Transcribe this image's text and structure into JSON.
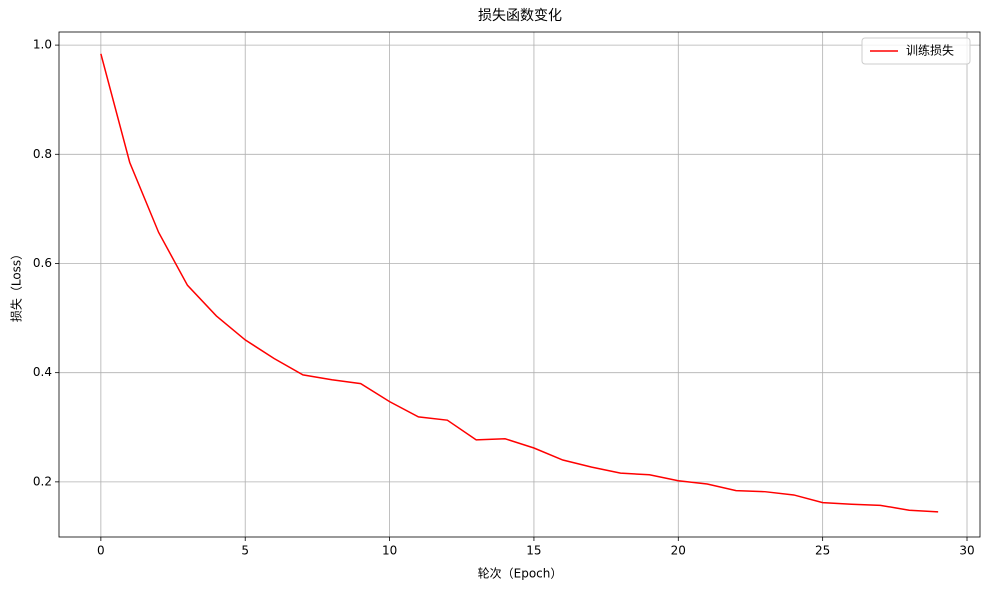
{
  "chart_data": {
    "type": "line",
    "title": "损失函数变化",
    "x_label": "轮次（Epoch）",
    "y_label": "损失（Loss）",
    "x": [
      0,
      1,
      2,
      3,
      4,
      5,
      6,
      7,
      8,
      9,
      10,
      11,
      12,
      13,
      14,
      15,
      16,
      17,
      18,
      19,
      20,
      21,
      22,
      23,
      24,
      25,
      26,
      27,
      28,
      29
    ],
    "series": [
      {
        "name": "训练损失",
        "color": "#ff0000",
        "values": [
          0.984,
          0.785,
          0.657,
          0.56,
          0.504,
          0.46,
          0.426,
          0.396,
          0.387,
          0.38,
          0.347,
          0.319,
          0.313,
          0.277,
          0.279,
          0.262,
          0.24,
          0.227,
          0.216,
          0.213,
          0.202,
          0.196,
          0.184,
          0.182,
          0.176,
          0.162,
          0.159,
          0.157,
          0.148,
          0.145
        ]
      }
    ],
    "xlim": [
      -1.45,
      30.45
    ],
    "xticks": [
      0,
      5,
      10,
      15,
      20,
      25,
      30
    ],
    "ylim": [
      0.099,
      1.024
    ],
    "yticks": [
      {
        "value": 0.2,
        "label": "0.2"
      },
      {
        "value": 0.4,
        "label": "0.4"
      },
      {
        "value": 0.6,
        "label": "0.6"
      },
      {
        "value": 0.8,
        "label": "0.8"
      },
      {
        "value": 1.0,
        "label": "1.0"
      }
    ],
    "grid": true,
    "legend": "upper right"
  }
}
